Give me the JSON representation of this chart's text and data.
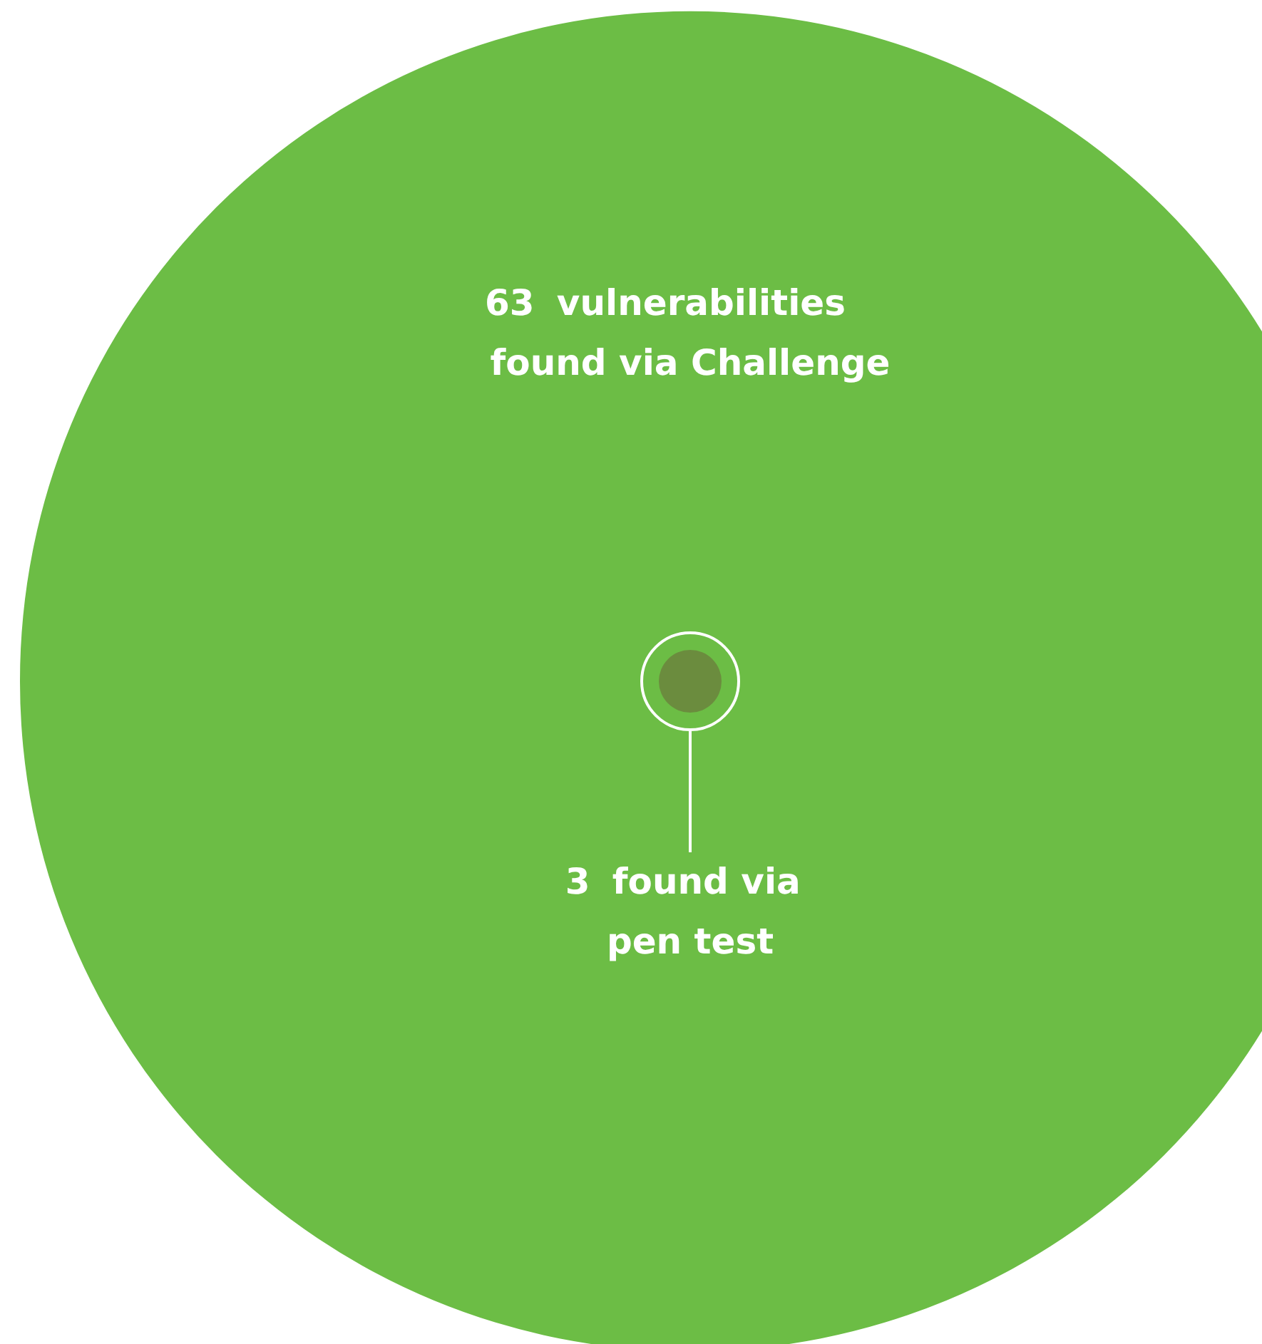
{
  "chart_data": {
    "type": "other",
    "categories": [
      "vulnerabilities\nfound via Challenge",
      "found via\npen test"
    ],
    "values": [
      63,
      3
    ],
    "colors": [
      "#6cbd45",
      "#6b8c3e"
    ],
    "data_labels": true
  }
}
